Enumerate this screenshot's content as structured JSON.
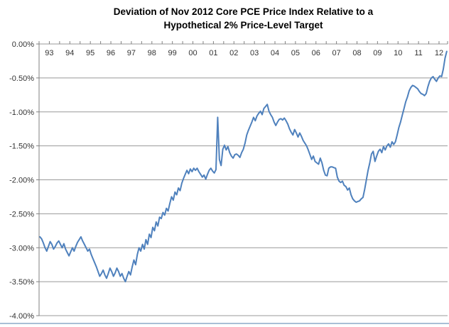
{
  "title": {
    "line1": "Deviation of Nov 2012 Core PCE Price Index Relative to a",
    "line2": "Hypothetical 2% Price-Level Target"
  },
  "chart_data": {
    "type": "line",
    "title": "Deviation of Nov 2012 Core PCE Price Index Relative to a Hypothetical 2% Price-Level Target",
    "frequency": "monthly",
    "x_start": "Jan 1993",
    "x_end": "Nov 2012",
    "x_tick_labels": [
      "93",
      "94",
      "95",
      "96",
      "97",
      "98",
      "99",
      "00",
      "01",
      "02",
      "03",
      "04",
      "05",
      "06",
      "07",
      "08",
      "09",
      "10",
      "11",
      "12"
    ],
    "y_tick_labels": [
      "0.00%",
      "-0.50%",
      "-1.00%",
      "-1.50%",
      "-2.00%",
      "-2.50%",
      "-3.00%",
      "-3.50%",
      "-4.00%"
    ],
    "ylim": [
      -4.0,
      0.0
    ],
    "unit": "percent",
    "grid": "horizontal",
    "legend": "none",
    "line_color": "#4F81BD",
    "grid_color": "#999999",
    "axis_color": "#808080",
    "series": [
      {
        "name": "Deviation of core PCE price index from 2% price-level target",
        "values": [
          -2.84,
          -2.87,
          -2.93,
          -3.0,
          -3.05,
          -2.98,
          -2.91,
          -2.95,
          -3.02,
          -2.98,
          -2.93,
          -2.9,
          -2.95,
          -3.0,
          -2.94,
          -3.02,
          -3.07,
          -3.12,
          -3.06,
          -3.0,
          -3.05,
          -2.98,
          -2.92,
          -2.88,
          -2.84,
          -2.9,
          -2.95,
          -3.0,
          -3.05,
          -3.02,
          -3.1,
          -3.16,
          -3.22,
          -3.28,
          -3.35,
          -3.42,
          -3.38,
          -3.33,
          -3.4,
          -3.45,
          -3.38,
          -3.3,
          -3.35,
          -3.42,
          -3.37,
          -3.3,
          -3.35,
          -3.42,
          -3.38,
          -3.45,
          -3.5,
          -3.42,
          -3.35,
          -3.4,
          -3.28,
          -3.18,
          -3.25,
          -3.1,
          -3.0,
          -3.05,
          -2.95,
          -3.02,
          -2.88,
          -2.95,
          -2.8,
          -2.85,
          -2.7,
          -2.75,
          -2.62,
          -2.68,
          -2.55,
          -2.57,
          -2.48,
          -2.52,
          -2.42,
          -2.46,
          -2.35,
          -2.25,
          -2.3,
          -2.18,
          -2.22,
          -2.12,
          -2.16,
          -2.05,
          -1.98,
          -1.92,
          -1.86,
          -1.91,
          -1.84,
          -1.88,
          -1.83,
          -1.86,
          -1.83,
          -1.88,
          -1.92,
          -1.96,
          -1.93,
          -1.99,
          -1.92,
          -1.86,
          -1.83,
          -1.87,
          -1.9,
          -1.85,
          -1.08,
          -1.7,
          -1.79,
          -1.55,
          -1.49,
          -1.56,
          -1.51,
          -1.6,
          -1.65,
          -1.68,
          -1.63,
          -1.62,
          -1.64,
          -1.67,
          -1.6,
          -1.55,
          -1.46,
          -1.34,
          -1.27,
          -1.21,
          -1.15,
          -1.08,
          -1.13,
          -1.06,
          -1.02,
          -0.99,
          -1.04,
          -0.95,
          -0.92,
          -0.89,
          -0.99,
          -1.04,
          -1.08,
          -1.15,
          -1.2,
          -1.15,
          -1.11,
          -1.1,
          -1.12,
          -1.09,
          -1.13,
          -1.18,
          -1.25,
          -1.3,
          -1.34,
          -1.26,
          -1.31,
          -1.37,
          -1.31,
          -1.36,
          -1.42,
          -1.46,
          -1.5,
          -1.56,
          -1.63,
          -1.7,
          -1.65,
          -1.73,
          -1.75,
          -1.77,
          -1.68,
          -1.75,
          -1.86,
          -1.93,
          -1.94,
          -1.83,
          -1.81,
          -1.81,
          -1.82,
          -1.83,
          -1.96,
          -2.02,
          -2.04,
          -2.02,
          -2.08,
          -2.1,
          -2.15,
          -2.12,
          -2.22,
          -2.28,
          -2.31,
          -2.33,
          -2.32,
          -2.31,
          -2.28,
          -2.26,
          -2.14,
          -2.0,
          -1.86,
          -1.75,
          -1.62,
          -1.58,
          -1.73,
          -1.65,
          -1.58,
          -1.55,
          -1.6,
          -1.51,
          -1.56,
          -1.5,
          -1.47,
          -1.52,
          -1.44,
          -1.48,
          -1.44,
          -1.34,
          -1.23,
          -1.15,
          -1.05,
          -0.95,
          -0.85,
          -0.78,
          -0.69,
          -0.64,
          -0.61,
          -0.62,
          -0.64,
          -0.66,
          -0.7,
          -0.73,
          -0.74,
          -0.76,
          -0.73,
          -0.63,
          -0.55,
          -0.5,
          -0.48,
          -0.52,
          -0.55,
          -0.5,
          -0.47,
          -0.48,
          -0.37,
          -0.21,
          -0.11
        ]
      }
    ]
  }
}
